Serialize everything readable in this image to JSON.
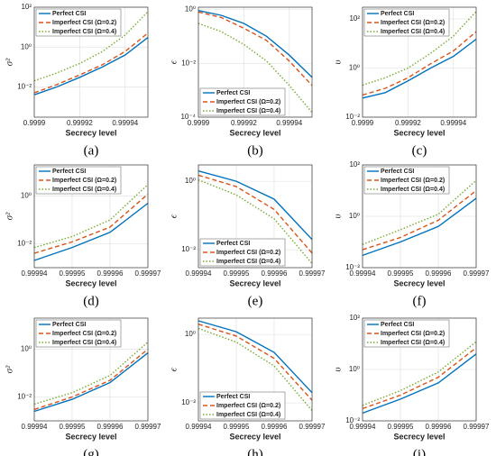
{
  "chart_data": [
    {
      "type": "line",
      "caption": "(a)",
      "xlabel": "Secrecy level",
      "ylabel": "σ²",
      "log_y": true,
      "grid": true,
      "legend": "upper left",
      "x": [
        0.9999,
        0.99991,
        0.99992,
        0.99993,
        0.99994,
        0.99995
      ],
      "xlim": [
        0.9999,
        0.99995
      ],
      "xticks": [
        0.9999,
        0.99992,
        0.99994
      ],
      "ylim": [
        0.0003,
        100
      ],
      "yticks": [
        {
          "value": 0.01,
          "label": "10⁻²"
        },
        {
          "value": 1,
          "label": "10⁰"
        },
        {
          "value": 100,
          "label": "10²"
        }
      ],
      "series": [
        {
          "name": "Perfect CSI",
          "color": "#0072bd",
          "dash": "solid",
          "values": [
            0.004,
            0.01,
            0.03,
            0.1,
            0.4,
            3
          ]
        },
        {
          "name": "Imperfect CSI (Ω=0.2)",
          "color": "#d95319",
          "dash": "dashed",
          "values": [
            0.005,
            0.013,
            0.04,
            0.13,
            0.6,
            5
          ]
        },
        {
          "name": "Imperfect CSI (Ω=0.4)",
          "color": "#77ac30",
          "dash": "dotted",
          "values": [
            0.02,
            0.05,
            0.15,
            0.6,
            4,
            60
          ]
        }
      ]
    },
    {
      "type": "line",
      "caption": "(b)",
      "xlabel": "Secrecy level",
      "ylabel": "ϵ",
      "log_y": true,
      "grid": true,
      "legend": "lower left",
      "x": [
        0.9999,
        0.99991,
        0.99992,
        0.99993,
        0.99994,
        0.99995
      ],
      "xlim": [
        0.9999,
        0.99995
      ],
      "xticks": [
        0.9999,
        0.99992,
        0.99994
      ],
      "ylim": [
        0.0001,
        1.2
      ],
      "yticks": [
        {
          "value": 0.0001,
          "label": "10⁻⁴"
        },
        {
          "value": 0.01,
          "label": "10⁻²"
        },
        {
          "value": 1,
          "label": "10⁰"
        }
      ],
      "series": [
        {
          "name": "Perfect CSI",
          "color": "#0072bd",
          "dash": "solid",
          "values": [
            0.9,
            0.6,
            0.3,
            0.1,
            0.02,
            0.003
          ]
        },
        {
          "name": "Imperfect CSI (Ω=0.2)",
          "color": "#d95319",
          "dash": "dashed",
          "values": [
            0.8,
            0.5,
            0.2,
            0.07,
            0.012,
            0.0015
          ]
        },
        {
          "name": "Imperfect CSI (Ω=0.4)",
          "color": "#77ac30",
          "dash": "dotted",
          "values": [
            0.3,
            0.15,
            0.05,
            0.012,
            0.0015,
            0.00015
          ]
        }
      ]
    },
    {
      "type": "line",
      "caption": "(c)",
      "xlabel": "Secrecy level",
      "ylabel": "υ",
      "log_y": true,
      "grid": true,
      "legend": "upper left",
      "x": [
        0.9999,
        0.99991,
        0.99992,
        0.99993,
        0.99994,
        0.99995
      ],
      "xlim": [
        0.9999,
        0.99995
      ],
      "xticks": [
        0.9999,
        0.99992,
        0.99994
      ],
      "ylim": [
        0.01,
        300
      ],
      "yticks": [
        {
          "value": 0.01,
          "label": "10⁻²"
        },
        {
          "value": 1,
          "label": "10⁰"
        },
        {
          "value": 100,
          "label": "10²"
        }
      ],
      "series": [
        {
          "name": "Perfect CSI",
          "color": "#0072bd",
          "dash": "solid",
          "values": [
            0.06,
            0.1,
            0.3,
            1,
            3,
            15
          ]
        },
        {
          "name": "Imperfect CSI (Ω=0.2)",
          "color": "#d95319",
          "dash": "dashed",
          "values": [
            0.08,
            0.15,
            0.4,
            1.5,
            5,
            30
          ]
        },
        {
          "name": "Imperfect CSI (Ω=0.4)",
          "color": "#77ac30",
          "dash": "dotted",
          "values": [
            0.2,
            0.4,
            1,
            4,
            20,
            200
          ]
        }
      ]
    },
    {
      "type": "line",
      "caption": "(d)",
      "xlabel": "Secrecy level",
      "ylabel": "σ²",
      "log_y": true,
      "grid": true,
      "legend": "upper left",
      "x": [
        0.99994,
        0.99995,
        0.99996,
        0.99997
      ],
      "xlim": [
        0.99994,
        0.99997
      ],
      "xticks": [
        0.99994,
        0.99995,
        0.99996,
        0.99997
      ],
      "ylim": [
        0.001,
        20
      ],
      "yticks": [
        {
          "value": 0.01,
          "label": "10⁻²"
        },
        {
          "value": 1,
          "label": "10⁰"
        }
      ],
      "series": [
        {
          "name": "Perfect CSI",
          "color": "#0072bd",
          "dash": "solid",
          "values": [
            0.002,
            0.007,
            0.03,
            0.5
          ]
        },
        {
          "name": "Imperfect CSI (Ω=0.2)",
          "color": "#d95319",
          "dash": "dashed",
          "values": [
            0.004,
            0.012,
            0.05,
            1.2
          ]
        },
        {
          "name": "Imperfect CSI (Ω=0.4)",
          "color": "#77ac30",
          "dash": "dotted",
          "values": [
            0.007,
            0.02,
            0.1,
            3
          ]
        }
      ]
    },
    {
      "type": "line",
      "caption": "(e)",
      "xlabel": "Secrecy level",
      "ylabel": "ϵ",
      "log_y": true,
      "grid": true,
      "legend": "lower left",
      "x": [
        0.99994,
        0.99995,
        0.99996,
        0.99997
      ],
      "xlim": [
        0.99994,
        0.99997
      ],
      "xticks": [
        0.99994,
        0.99995,
        0.99996,
        0.99997
      ],
      "ylim": [
        0.003,
        3
      ],
      "yticks": [
        {
          "value": 0.01,
          "label": "10⁻²"
        },
        {
          "value": 1,
          "label": "10⁰"
        }
      ],
      "series": [
        {
          "name": "Perfect CSI",
          "color": "#0072bd",
          "dash": "solid",
          "values": [
            2,
            1,
            0.3,
            0.02
          ]
        },
        {
          "name": "Imperfect CSI (Ω=0.2)",
          "color": "#d95319",
          "dash": "dashed",
          "values": [
            1.5,
            0.7,
            0.15,
            0.008
          ]
        },
        {
          "name": "Imperfect CSI (Ω=0.4)",
          "color": "#77ac30",
          "dash": "dotted",
          "values": [
            1.1,
            0.4,
            0.08,
            0.004
          ]
        }
      ]
    },
    {
      "type": "line",
      "caption": "(f)",
      "xlabel": "Secrecy level",
      "ylabel": "υ",
      "log_y": true,
      "grid": true,
      "legend": "upper left",
      "x": [
        0.99994,
        0.99995,
        0.99996,
        0.99997
      ],
      "xlim": [
        0.99994,
        0.99997
      ],
      "xticks": [
        0.99994,
        0.99995,
        0.99996,
        0.99997
      ],
      "ylim": [
        0.01,
        100
      ],
      "yticks": [
        {
          "value": 0.01,
          "label": "10⁻²"
        },
        {
          "value": 1,
          "label": "10⁰"
        },
        {
          "value": 100,
          "label": "10²"
        }
      ],
      "series": [
        {
          "name": "Perfect CSI",
          "color": "#0072bd",
          "dash": "solid",
          "values": [
            0.03,
            0.1,
            0.4,
            5
          ]
        },
        {
          "name": "Imperfect CSI (Ω=0.2)",
          "color": "#d95319",
          "dash": "dashed",
          "values": [
            0.05,
            0.15,
            0.7,
            10
          ]
        },
        {
          "name": "Imperfect CSI (Ω=0.4)",
          "color": "#77ac30",
          "dash": "dotted",
          "values": [
            0.08,
            0.3,
            1.2,
            25
          ]
        }
      ]
    },
    {
      "type": "line",
      "caption": "(g)",
      "xlabel": "Secrecy level",
      "ylabel": "σ²",
      "log_y": true,
      "grid": true,
      "legend": "upper left",
      "x": [
        0.99994,
        0.99995,
        0.99996,
        0.99997
      ],
      "xlim": [
        0.99994,
        0.99997
      ],
      "xticks": [
        0.99994,
        0.99995,
        0.99996,
        0.99997
      ],
      "ylim": [
        0.001,
        20
      ],
      "yticks": [
        {
          "value": 0.01,
          "label": "10⁻²"
        },
        {
          "value": 1,
          "label": "10⁰"
        }
      ],
      "series": [
        {
          "name": "Perfect CSI",
          "color": "#0072bd",
          "dash": "solid",
          "values": [
            0.0025,
            0.008,
            0.04,
            0.7
          ]
        },
        {
          "name": "Imperfect CSI (Ω=0.2)",
          "color": "#d95319",
          "dash": "dashed",
          "values": [
            0.003,
            0.01,
            0.05,
            1
          ]
        },
        {
          "name": "Imperfect CSI (Ω=0.4)",
          "color": "#77ac30",
          "dash": "dotted",
          "values": [
            0.005,
            0.015,
            0.08,
            2
          ]
        }
      ]
    },
    {
      "type": "line",
      "caption": "(h)",
      "xlabel": "Secrecy level",
      "ylabel": "ϵ",
      "log_y": true,
      "grid": true,
      "legend": "lower left",
      "x": [
        0.99994,
        0.99995,
        0.99996,
        0.99997
      ],
      "xlim": [
        0.99994,
        0.99997
      ],
      "xticks": [
        0.99994,
        0.99995,
        0.99996,
        0.99997
      ],
      "ylim": [
        0.003,
        3
      ],
      "yticks": [
        {
          "value": 0.01,
          "label": "10⁻²"
        },
        {
          "value": 1,
          "label": "10⁰"
        }
      ],
      "series": [
        {
          "name": "Perfect CSI",
          "color": "#0072bd",
          "dash": "solid",
          "values": [
            2.5,
            1.2,
            0.3,
            0.02
          ]
        },
        {
          "name": "Imperfect CSI (Ω=0.2)",
          "color": "#d95319",
          "dash": "dashed",
          "values": [
            2,
            0.9,
            0.2,
            0.012
          ]
        },
        {
          "name": "Imperfect CSI (Ω=0.4)",
          "color": "#77ac30",
          "dash": "dotted",
          "values": [
            1.5,
            0.6,
            0.12,
            0.006
          ]
        }
      ]
    },
    {
      "type": "line",
      "caption": "(i)",
      "xlabel": "Secrecy level",
      "ylabel": "υ",
      "log_y": true,
      "grid": true,
      "legend": "upper left",
      "x": [
        0.99994,
        0.99995,
        0.99996,
        0.99997
      ],
      "xlim": [
        0.99994,
        0.99997
      ],
      "xticks": [
        0.99994,
        0.99995,
        0.99996,
        0.99997
      ],
      "ylim": [
        0.01,
        100
      ],
      "yticks": [
        {
          "value": 0.01,
          "label": "10⁻²"
        },
        {
          "value": 1,
          "label": "10⁰"
        },
        {
          "value": 100,
          "label": "10²"
        }
      ],
      "series": [
        {
          "name": "Perfect CSI",
          "color": "#0072bd",
          "dash": "solid",
          "values": [
            0.02,
            0.07,
            0.3,
            4
          ]
        },
        {
          "name": "Imperfect CSI (Ω=0.2)",
          "color": "#d95319",
          "dash": "dashed",
          "values": [
            0.03,
            0.1,
            0.5,
            7
          ]
        },
        {
          "name": "Imperfect CSI (Ω=0.4)",
          "color": "#77ac30",
          "dash": "dotted",
          "values": [
            0.04,
            0.15,
            0.8,
            12
          ]
        }
      ]
    }
  ]
}
